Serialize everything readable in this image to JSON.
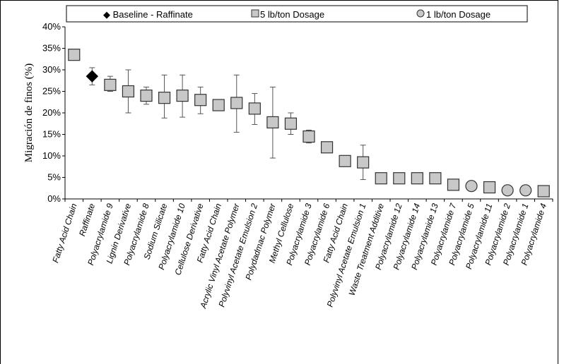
{
  "chart_data": {
    "type": "scatter",
    "ylabel": "Migración de finos (%)",
    "ylim": [
      0,
      40
    ],
    "yticks": [
      "0%",
      "5%",
      "10%",
      "15%",
      "20%",
      "25%",
      "30%",
      "35%",
      "40%"
    ],
    "grid": false,
    "legend_position": "top",
    "legend": [
      {
        "label": "◆ Baseline - Raffinate",
        "marker": "diamond"
      },
      {
        "label": "5 lb/ton Dosage",
        "marker": "square"
      },
      {
        "label": "1 lb/ton Dosage",
        "marker": "circle"
      }
    ],
    "categories": [
      "Fatty Acid Chain",
      "Raffinate",
      "Polyacrylamide 9",
      "Lignin Derivative",
      "Polyacrylamide 8",
      "Sodium Silicate",
      "Polyacrylamide 10",
      "Cellulose Derivative",
      "Fatty Acid Chain",
      "Acrylic Vinyl Acetate Polymer",
      "Polyvinyl Acetate Emulsion 2",
      "Polydadmac Polymer",
      "Methyl Cellulose",
      "Polyacrylamide 3",
      "Polyacrylamide 6",
      "Fatty Acid Chain",
      "Polyvinyl Acetate Emulsion 1",
      "Waste Treatment Additive",
      "Polyacrylamide 12",
      "Polyacrylamide 14",
      "Polyacrylamide 13",
      "Polyacrylamide 7",
      "Polyacrylamide 5",
      "Polyacrylamide 11",
      "Polyacrylamide 2",
      "Polyacrylamide 1",
      "Polyacrylamide 4"
    ],
    "values": [
      33.5,
      28.5,
      26.5,
      25.0,
      24.0,
      23.5,
      24.0,
      23.0,
      21.8,
      22.3,
      21.0,
      17.8,
      17.5,
      14.5,
      12.0,
      8.8,
      8.5,
      4.8,
      4.8,
      4.8,
      4.8,
      3.3,
      3.0,
      2.7,
      2.0,
      2.0,
      1.8
    ],
    "error_low": [
      null,
      26.5,
      25.0,
      20.0,
      22.0,
      18.8,
      19.0,
      19.8,
      null,
      15.5,
      17.3,
      9.5,
      15.0,
      13.0,
      null,
      null,
      4.5,
      null,
      null,
      null,
      null,
      null,
      null,
      null,
      null,
      null,
      null
    ],
    "error_high": [
      null,
      30.5,
      28.5,
      30.0,
      26.0,
      28.8,
      28.8,
      26.0,
      null,
      28.8,
      24.5,
      26.0,
      20.0,
      16.0,
      null,
      null,
      12.5,
      null,
      null,
      null,
      null,
      null,
      null,
      null,
      null,
      null,
      null
    ],
    "markers": [
      "square",
      "diamond",
      "square",
      "square",
      "square",
      "square",
      "square",
      "square",
      "square",
      "square",
      "square",
      "square",
      "square",
      "square",
      "square",
      "square",
      "square",
      "square",
      "square",
      "square",
      "square",
      "square",
      "circle",
      "square",
      "circle",
      "circle",
      "square"
    ]
  }
}
